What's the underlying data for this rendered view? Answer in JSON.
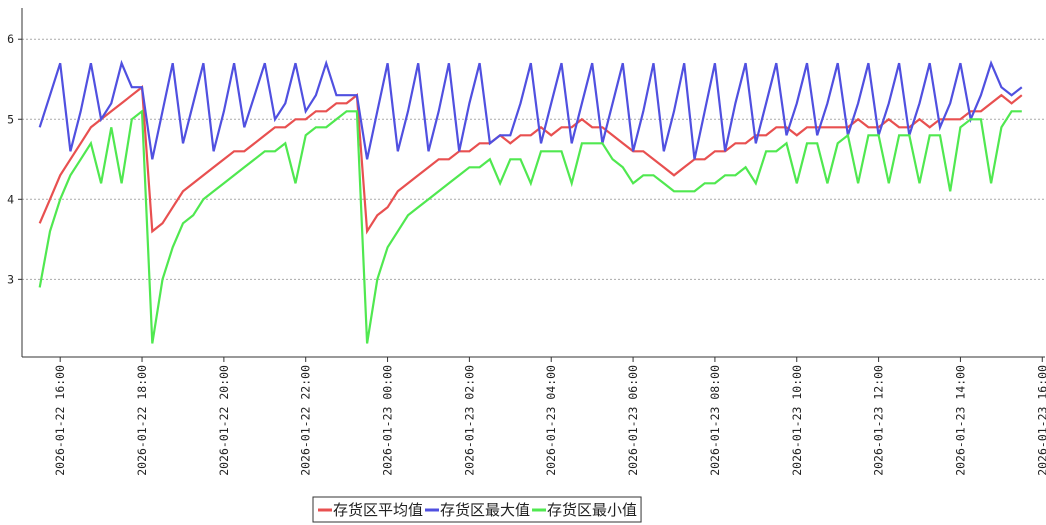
{
  "chart_data": {
    "type": "line",
    "x": [
      "2026-01-22 15:30",
      "2026-01-22 15:45",
      "2026-01-22 16:00",
      "2026-01-22 16:15",
      "2026-01-22 16:30",
      "2026-01-22 16:45",
      "2026-01-22 17:00",
      "2026-01-22 17:15",
      "2026-01-22 17:30",
      "2026-01-22 17:45",
      "2026-01-22 18:00",
      "2026-01-22 18:15",
      "2026-01-22 18:30",
      "2026-01-22 18:45",
      "2026-01-22 19:00",
      "2026-01-22 19:15",
      "2026-01-22 19:30",
      "2026-01-22 19:45",
      "2026-01-22 20:00",
      "2026-01-22 20:15",
      "2026-01-22 20:30",
      "2026-01-22 20:45",
      "2026-01-22 21:00",
      "2026-01-22 21:15",
      "2026-01-22 21:30",
      "2026-01-22 21:45",
      "2026-01-22 22:00",
      "2026-01-22 22:15",
      "2026-01-22 22:30",
      "2026-01-22 22:45",
      "2026-01-22 23:00",
      "2026-01-22 23:15",
      "2026-01-22 23:30",
      "2026-01-22 23:45",
      "2026-01-23 00:00",
      "2026-01-23 00:15",
      "2026-01-23 00:30",
      "2026-01-23 00:45",
      "2026-01-23 01:00",
      "2026-01-23 01:15",
      "2026-01-23 01:30",
      "2026-01-23 01:45",
      "2026-01-23 02:00",
      "2026-01-23 02:15",
      "2026-01-23 02:30",
      "2026-01-23 02:45",
      "2026-01-23 03:00",
      "2026-01-23 03:15",
      "2026-01-23 03:30",
      "2026-01-23 03:45",
      "2026-01-23 04:00",
      "2026-01-23 04:15",
      "2026-01-23 04:30",
      "2026-01-23 04:45",
      "2026-01-23 05:00",
      "2026-01-23 05:15",
      "2026-01-23 05:30",
      "2026-01-23 05:45",
      "2026-01-23 06:00",
      "2026-01-23 06:15",
      "2026-01-23 06:30",
      "2026-01-23 06:45",
      "2026-01-23 07:00",
      "2026-01-23 07:15",
      "2026-01-23 07:30",
      "2026-01-23 07:45",
      "2026-01-23 08:00",
      "2026-01-23 08:15",
      "2026-01-23 08:30",
      "2026-01-23 08:45",
      "2026-01-23 09:00",
      "2026-01-23 09:15",
      "2026-01-23 09:30",
      "2026-01-23 09:45",
      "2026-01-23 10:00",
      "2026-01-23 10:15",
      "2026-01-23 10:30",
      "2026-01-23 10:45",
      "2026-01-23 11:00",
      "2026-01-23 11:15",
      "2026-01-23 11:30",
      "2026-01-23 11:45",
      "2026-01-23 12:00",
      "2026-01-23 12:15",
      "2026-01-23 12:30",
      "2026-01-23 12:45",
      "2026-01-23 13:00",
      "2026-01-23 13:15",
      "2026-01-23 13:30",
      "2026-01-23 13:45",
      "2026-01-23 14:00",
      "2026-01-23 14:15",
      "2026-01-23 14:30",
      "2026-01-23 14:45",
      "2026-01-23 15:00",
      "2026-01-23 15:15",
      "2026-01-23 15:30"
    ],
    "series": [
      {
        "name": "存货区平均值",
        "color": "#e85050",
        "values": [
          3.7,
          4.0,
          4.3,
          4.5,
          4.7,
          4.9,
          5.0,
          5.1,
          5.2,
          5.3,
          5.4,
          3.6,
          3.7,
          3.9,
          4.1,
          4.2,
          4.3,
          4.4,
          4.5,
          4.6,
          4.6,
          4.7,
          4.8,
          4.9,
          4.9,
          5.0,
          5.0,
          5.1,
          5.1,
          5.2,
          5.2,
          5.3,
          3.6,
          3.8,
          3.9,
          4.1,
          4.2,
          4.3,
          4.4,
          4.5,
          4.5,
          4.6,
          4.6,
          4.7,
          4.7,
          4.8,
          4.7,
          4.8,
          4.8,
          4.9,
          4.8,
          4.9,
          4.9,
          5.0,
          4.9,
          4.9,
          4.8,
          4.7,
          4.6,
          4.6,
          4.5,
          4.4,
          4.3,
          4.4,
          4.5,
          4.5,
          4.6,
          4.6,
          4.7,
          4.7,
          4.8,
          4.8,
          4.9,
          4.9,
          4.8,
          4.9,
          4.9,
          4.9,
          4.9,
          4.9,
          5.0,
          4.9,
          4.9,
          5.0,
          4.9,
          4.9,
          5.0,
          4.9,
          5.0,
          5.0,
          5.0,
          5.1,
          5.1,
          5.2,
          5.3,
          5.2,
          5.3
        ]
      },
      {
        "name": "存货区最大值",
        "color": "#5050e0",
        "values": [
          4.9,
          5.3,
          5.7,
          4.6,
          5.1,
          5.7,
          5.0,
          5.2,
          5.7,
          5.4,
          5.4,
          4.5,
          5.1,
          5.7,
          4.7,
          5.2,
          5.7,
          4.6,
          5.1,
          5.7,
          4.9,
          5.3,
          5.7,
          5.0,
          5.2,
          5.7,
          5.1,
          5.3,
          5.7,
          5.3,
          5.3,
          5.3,
          4.5,
          5.1,
          5.7,
          4.6,
          5.1,
          5.7,
          4.6,
          5.1,
          5.7,
          4.6,
          5.2,
          5.7,
          4.7,
          4.8,
          4.8,
          5.2,
          5.7,
          4.7,
          5.2,
          5.7,
          4.7,
          5.2,
          5.7,
          4.7,
          5.2,
          5.7,
          4.6,
          5.1,
          5.7,
          4.6,
          5.1,
          5.7,
          4.5,
          5.1,
          5.7,
          4.6,
          5.2,
          5.7,
          4.7,
          5.2,
          5.7,
          4.8,
          5.2,
          5.7,
          4.8,
          5.2,
          5.7,
          4.8,
          5.2,
          5.7,
          4.8,
          5.2,
          5.7,
          4.8,
          5.2,
          5.7,
          4.9,
          5.2,
          5.7,
          5.0,
          5.3,
          5.7,
          5.4,
          5.3,
          5.4
        ]
      },
      {
        "name": "存货区最小值",
        "color": "#50e850",
        "values": [
          2.9,
          3.6,
          4.0,
          4.3,
          4.5,
          4.7,
          4.2,
          4.9,
          4.2,
          5.0,
          5.1,
          2.2,
          3.0,
          3.4,
          3.7,
          3.8,
          4.0,
          4.1,
          4.2,
          4.3,
          4.4,
          4.5,
          4.6,
          4.6,
          4.7,
          4.2,
          4.8,
          4.9,
          4.9,
          5.0,
          5.1,
          5.1,
          2.2,
          3.0,
          3.4,
          3.6,
          3.8,
          3.9,
          4.0,
          4.1,
          4.2,
          4.3,
          4.4,
          4.4,
          4.5,
          4.2,
          4.5,
          4.5,
          4.2,
          4.6,
          4.6,
          4.6,
          4.2,
          4.7,
          4.7,
          4.7,
          4.5,
          4.4,
          4.2,
          4.3,
          4.3,
          4.2,
          4.1,
          4.1,
          4.1,
          4.2,
          4.2,
          4.3,
          4.3,
          4.4,
          4.2,
          4.6,
          4.6,
          4.7,
          4.2,
          4.7,
          4.7,
          4.2,
          4.7,
          4.8,
          4.2,
          4.8,
          4.8,
          4.2,
          4.8,
          4.8,
          4.2,
          4.8,
          4.8,
          4.1,
          4.9,
          5.0,
          5.0,
          4.2,
          4.9,
          5.1,
          5.1
        ]
      }
    ],
    "xlim": [
      "2026-01-22 15:04",
      "2026-01-23 16:04"
    ],
    "xticks": [
      "2026-01-22 16:00",
      "2026-01-22 18:00",
      "2026-01-22 20:00",
      "2026-01-22 22:00",
      "2026-01-23 00:00",
      "2026-01-23 02:00",
      "2026-01-23 04:00",
      "2026-01-23 06:00",
      "2026-01-23 08:00",
      "2026-01-23 10:00",
      "2026-01-23 12:00",
      "2026-01-23 14:00",
      "2026-01-23 16:00"
    ],
    "ylim": [
      2.03,
      6.39
    ],
    "yticks": [
      3,
      4,
      5,
      6
    ],
    "grid": true,
    "legend": "bottom"
  }
}
